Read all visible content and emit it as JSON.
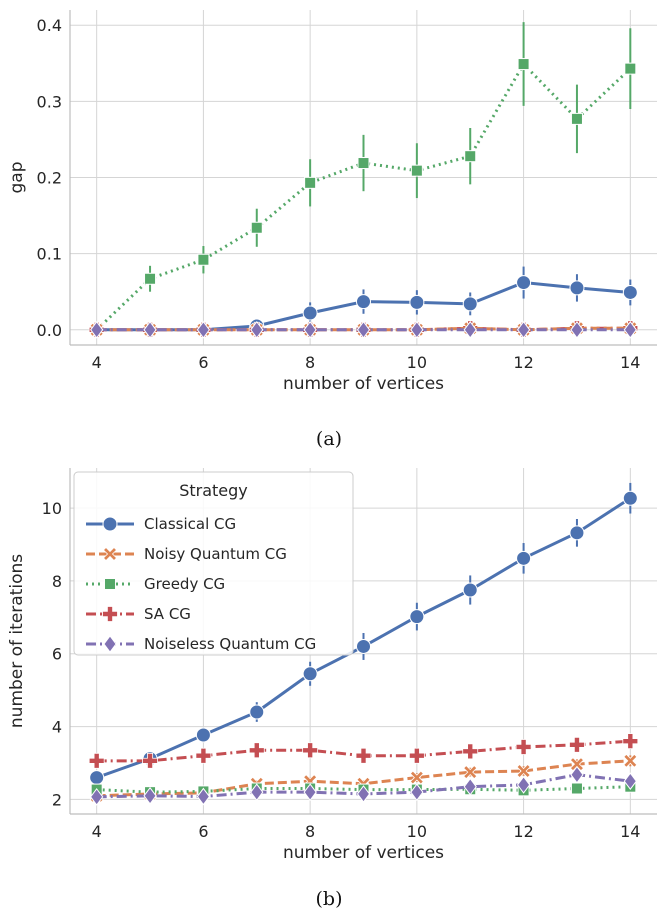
{
  "colors": {
    "classical": "#4c72b0",
    "noisy": "#dd8452",
    "greedy": "#55a868",
    "sa": "#c44e52",
    "noiseless": "#8172b3"
  },
  "chart_data": [
    {
      "type": "line",
      "caption": "(a)",
      "xlabel": "number of vertices",
      "ylabel": "gap",
      "x": [
        4,
        5,
        6,
        7,
        8,
        9,
        10,
        11,
        12,
        13,
        14
      ],
      "xticks": [
        4,
        6,
        8,
        10,
        12,
        14
      ],
      "xtick_labels": [
        "4",
        "6",
        "8",
        "10",
        "12",
        "14"
      ],
      "yticks": [
        0.0,
        0.1,
        0.2,
        0.3,
        0.4
      ],
      "ytick_labels": [
        "0.0",
        "0.1",
        "0.2",
        "0.3",
        "0.4"
      ],
      "xlim": [
        3.5,
        14.5
      ],
      "ylim": [
        -0.02,
        0.42
      ],
      "grid": true,
      "series": [
        {
          "key": "greedy",
          "values": [
            0.0,
            0.067,
            0.092,
            0.134,
            0.193,
            0.219,
            0.209,
            0.228,
            0.349,
            0.277,
            0.343
          ],
          "err": [
            0.0,
            0.017,
            0.018,
            0.025,
            0.031,
            0.037,
            0.036,
            0.037,
            0.055,
            0.045,
            0.053
          ],
          "marker": "square",
          "style": "dotted"
        },
        {
          "key": "classical",
          "values": [
            0.0,
            0.0,
            0.0,
            0.005,
            0.022,
            0.037,
            0.036,
            0.034,
            0.062,
            0.055,
            0.049
          ],
          "err": [
            0.0,
            0.0,
            0.0,
            0.005,
            0.014,
            0.016,
            0.016,
            0.015,
            0.021,
            0.018,
            0.017
          ],
          "marker": "circle",
          "style": "solid"
        },
        {
          "key": "sa",
          "values": [
            0.0,
            0.0,
            0.0,
            0.0,
            0.0,
            0.0,
            0.0,
            0.002,
            0.0,
            0.002,
            0.002
          ],
          "err": [
            0,
            0,
            0,
            0,
            0,
            0,
            0,
            0.002,
            0,
            0.002,
            0.002
          ],
          "marker": "plus",
          "style": "dashdot"
        },
        {
          "key": "noisy",
          "values": [
            0.0,
            0.0,
            0.0,
            0.0,
            0.0,
            0.0,
            0.0,
            0.002,
            0.0,
            0.002,
            0.002
          ],
          "err": [
            0,
            0,
            0,
            0,
            0,
            0,
            0,
            0.002,
            0,
            0.002,
            0.002
          ],
          "marker": "x",
          "style": "dashed"
        },
        {
          "key": "noiseless",
          "values": [
            0.0,
            0.0,
            0.0,
            0.0,
            0.0,
            0.0,
            0.0,
            0.0,
            0.0,
            0.0,
            0.0
          ],
          "err": [
            0,
            0,
            0,
            0,
            0,
            0,
            0,
            0,
            0,
            0,
            0
          ],
          "marker": "diamond",
          "style": "dashdot"
        }
      ]
    },
    {
      "type": "line",
      "caption": "(b)",
      "xlabel": "number of vertices",
      "ylabel": "number of iterations",
      "x": [
        4,
        5,
        6,
        7,
        8,
        9,
        10,
        11,
        12,
        13,
        14
      ],
      "xticks": [
        4,
        6,
        8,
        10,
        12,
        14
      ],
      "xtick_labels": [
        "4",
        "6",
        "8",
        "10",
        "12",
        "14"
      ],
      "yticks": [
        2,
        4,
        6,
        8,
        10
      ],
      "ytick_labels": [
        "2",
        "4",
        "6",
        "8",
        "10"
      ],
      "xlim": [
        3.5,
        14.5
      ],
      "ylim": [
        1.6,
        11.1
      ],
      "grid": true,
      "legend": {
        "title": "Strategy",
        "position": "top-left"
      },
      "series": [
        {
          "key": "classical",
          "name": "Classical CG",
          "values": [
            2.6,
            3.12,
            3.77,
            4.4,
            5.45,
            6.2,
            7.02,
            7.75,
            8.62,
            9.32,
            10.27
          ],
          "err": [
            0.12,
            0.15,
            0.2,
            0.27,
            0.33,
            0.37,
            0.38,
            0.4,
            0.42,
            0.38,
            0.42
          ],
          "marker": "circle",
          "style": "solid"
        },
        {
          "key": "noisy",
          "name": "Noisy Quantum CG",
          "values": [
            2.1,
            2.15,
            2.18,
            2.43,
            2.5,
            2.43,
            2.6,
            2.75,
            2.78,
            2.97,
            3.06
          ],
          "err": [
            0.05,
            0.06,
            0.06,
            0.1,
            0.1,
            0.1,
            0.12,
            0.12,
            0.13,
            0.13,
            0.15
          ],
          "marker": "x",
          "style": "dashed"
        },
        {
          "key": "greedy",
          "name": "Greedy CG",
          "values": [
            2.27,
            2.2,
            2.22,
            2.3,
            2.3,
            2.27,
            2.27,
            2.28,
            2.25,
            2.3,
            2.35
          ],
          "err": [
            0.05,
            0.05,
            0.05,
            0.06,
            0.06,
            0.06,
            0.06,
            0.06,
            0.06,
            0.06,
            0.06
          ],
          "marker": "square",
          "style": "dotted"
        },
        {
          "key": "sa",
          "name": "SA CG",
          "values": [
            3.06,
            3.06,
            3.2,
            3.35,
            3.35,
            3.2,
            3.2,
            3.32,
            3.44,
            3.5,
            3.6
          ],
          "err": [
            0.08,
            0.08,
            0.08,
            0.1,
            0.1,
            0.1,
            0.1,
            0.1,
            0.1,
            0.1,
            0.1
          ],
          "marker": "plus",
          "style": "dashdot"
        },
        {
          "key": "noiseless",
          "name": "Noiseless Quantum CG",
          "values": [
            2.07,
            2.1,
            2.08,
            2.2,
            2.2,
            2.15,
            2.2,
            2.35,
            2.4,
            2.68,
            2.5
          ],
          "err": [
            0.04,
            0.04,
            0.04,
            0.06,
            0.06,
            0.06,
            0.06,
            0.08,
            0.1,
            0.15,
            0.12
          ],
          "marker": "diamond",
          "style": "dashdot"
        }
      ]
    }
  ]
}
